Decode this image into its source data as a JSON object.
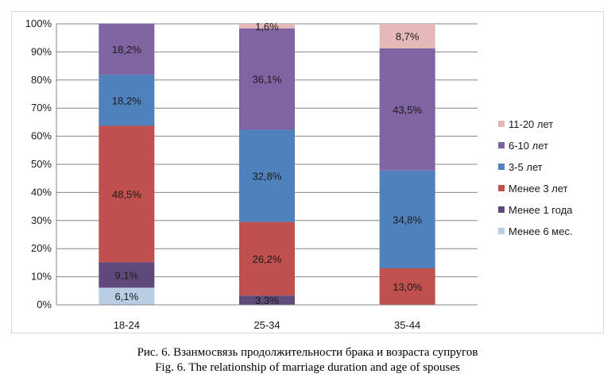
{
  "caption": {
    "ru": "Рис. 6. Взанмосвязь продолжительности брака и возраста супругов",
    "en": "Fig. 6. The relationship of marriage duration and age of spouses"
  },
  "chart_data": {
    "type": "bar",
    "stacked": true,
    "categories": [
      "18-24",
      "25-34",
      "35-44"
    ],
    "ylim": [
      0,
      100
    ],
    "yticks": [
      "0%",
      "10%",
      "20%",
      "30%",
      "40%",
      "50%",
      "60%",
      "70%",
      "80%",
      "90%",
      "100%"
    ],
    "grid": "horizontal",
    "legend_position": "right",
    "series": [
      {
        "name": "Менее 6 мес.",
        "color": "#b9cde5",
        "values": [
          6.1,
          0,
          0
        ],
        "labels": [
          "6,1%",
          "",
          ""
        ]
      },
      {
        "name": "Менее 1 года",
        "color": "#604a7b",
        "values": [
          9.1,
          3.3,
          0
        ],
        "labels": [
          "9,1%",
          "3,3%",
          ""
        ]
      },
      {
        "name": "Менее 3 лет",
        "color": "#c0504d",
        "values": [
          48.5,
          26.2,
          13.0
        ],
        "labels": [
          "48,5%",
          "26,2%",
          "13,0%"
        ]
      },
      {
        "name": "3-5 лет",
        "color": "#4f81bd",
        "values": [
          18.2,
          32.8,
          34.8
        ],
        "labels": [
          "18,2%",
          "32,8%",
          "34,8%"
        ]
      },
      {
        "name": "6-10 лет",
        "color": "#8064a2",
        "values": [
          18.2,
          36.1,
          43.5
        ],
        "labels": [
          "18,2%",
          "36,1%",
          "43,5%"
        ]
      },
      {
        "name": "11-20 лет",
        "color": "#e6b9b8",
        "values": [
          0,
          1.6,
          8.7
        ],
        "labels": [
          "",
          "1,6%",
          "8,7%"
        ]
      }
    ]
  }
}
